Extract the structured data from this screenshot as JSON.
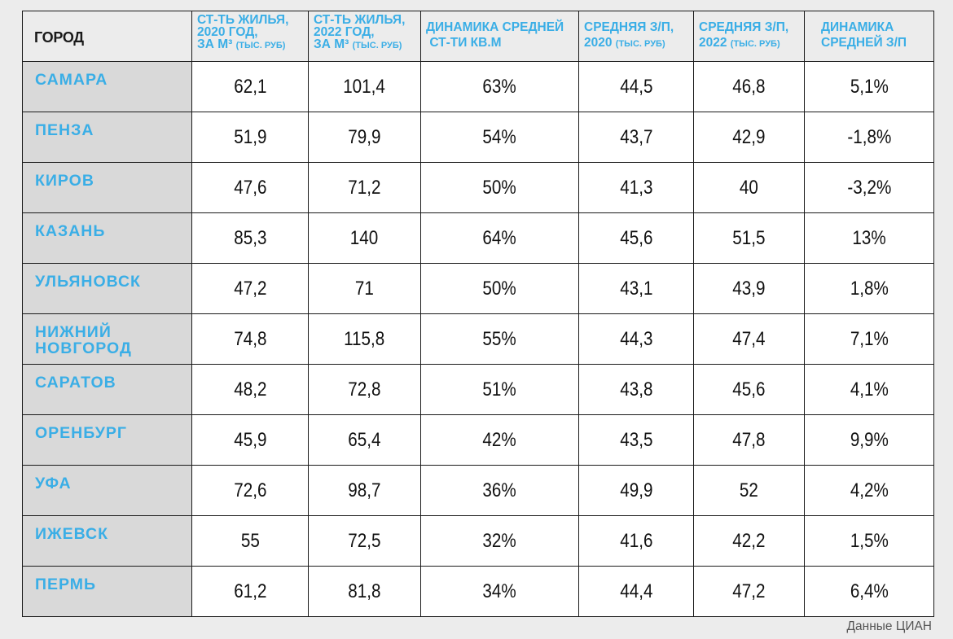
{
  "headers": {
    "city": "ГОРОД",
    "cost_2020": [
      "СТ-ТЬ ЖИЛЬЯ,",
      "2020 ГОД,",
      "ЗА М³",
      "(ТЫС. РУБ)"
    ],
    "cost_2022": [
      "СТ-ТЬ ЖИЛЬЯ,",
      "2022 ГОД,",
      "ЗА М³",
      "(ТЫС. РУБ)"
    ],
    "cost_dynamics": [
      "ДИНАМИКА СРЕДНЕЙ",
      "СТ-ТИ КВ.М"
    ],
    "salary_2020": [
      "СРЕДНЯЯ З/П,",
      "2020",
      "(ТЫС. РУБ)"
    ],
    "salary_2022": [
      "СРЕДНЯЯ З/П,",
      "2022",
      "(ТЫС. РУБ)"
    ],
    "salary_dynamics": [
      "ДИНАМИКА",
      "СРЕДНЕЙ З/П"
    ]
  },
  "rows": [
    {
      "city": "САМАРА",
      "cost_2020": "62,1",
      "cost_2022": "101,4",
      "cost_dynamics": "63%",
      "salary_2020": "44,5",
      "salary_2022": "46,8",
      "salary_dynamics": "5,1%"
    },
    {
      "city": "ПЕНЗА",
      "cost_2020": "51,9",
      "cost_2022": "79,9",
      "cost_dynamics": "54%",
      "salary_2020": "43,7",
      "salary_2022": "42,9",
      "salary_dynamics": "-1,8%"
    },
    {
      "city": "КИРОВ",
      "cost_2020": "47,6",
      "cost_2022": "71,2",
      "cost_dynamics": "50%",
      "salary_2020": "41,3",
      "salary_2022": "40",
      "salary_dynamics": "-3,2%"
    },
    {
      "city": "КАЗАНЬ",
      "cost_2020": "85,3",
      "cost_2022": "140",
      "cost_dynamics": "64%",
      "salary_2020": "45,6",
      "salary_2022": "51,5",
      "salary_dynamics": "13%"
    },
    {
      "city": "УЛЬЯНОВСК",
      "cost_2020": "47,2",
      "cost_2022": "71",
      "cost_dynamics": "50%",
      "salary_2020": "43,1",
      "salary_2022": "43,9",
      "salary_dynamics": "1,8%"
    },
    {
      "city": "НИЖНИЙ НОВГОРОД",
      "cost_2020": "74,8",
      "cost_2022": "115,8",
      "cost_dynamics": "55%",
      "salary_2020": "44,3",
      "salary_2022": "47,4",
      "salary_dynamics": "7,1%"
    },
    {
      "city": "САРАТОВ",
      "cost_2020": "48,2",
      "cost_2022": "72,8",
      "cost_dynamics": "51%",
      "salary_2020": "43,8",
      "salary_2022": "45,6",
      "salary_dynamics": "4,1%"
    },
    {
      "city": "ОРЕНБУРГ",
      "cost_2020": "45,9",
      "cost_2022": "65,4",
      "cost_dynamics": "42%",
      "salary_2020": "43,5",
      "salary_2022": "47,8",
      "salary_dynamics": "9,9%"
    },
    {
      "city": "УФА",
      "cost_2020": "72,6",
      "cost_2022": "98,7",
      "cost_dynamics": "36%",
      "salary_2020": "49,9",
      "salary_2022": "52",
      "salary_dynamics": "4,2%"
    },
    {
      "city": "ИЖЕВСК",
      "cost_2020": "55",
      "cost_2022": "72,5",
      "cost_dynamics": "32%",
      "salary_2020": "41,6",
      "salary_2022": "42,2",
      "salary_dynamics": "1,5%"
    },
    {
      "city": "ПЕРМЬ",
      "cost_2020": "61,2",
      "cost_2022": "81,8",
      "cost_dynamics": "34%",
      "salary_2020": "44,4",
      "salary_2022": "47,2",
      "salary_dynamics": "6,4%"
    }
  ],
  "source": "Данные ЦИАН",
  "colors": {
    "header_accent": "#3aaee6",
    "city_text": "#3aaee6",
    "city_cell_bg": "#d9d9d9",
    "value_cell_bg": "#ffffff",
    "page_bg": "#ececec",
    "border": "#1a1a1a"
  }
}
